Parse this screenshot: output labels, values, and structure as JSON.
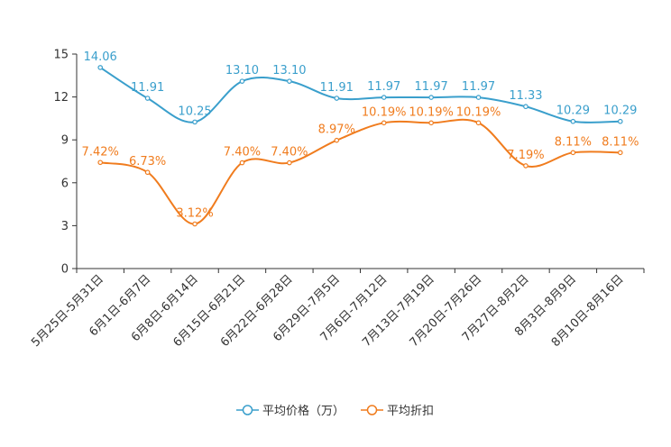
{
  "chart_data": {
    "type": "line",
    "categories": [
      "5月25日-5月31日",
      "6月1日-6月7日",
      "6月8日-6月14日",
      "6月15日-6月21日",
      "6月22日-6月28日",
      "6月29日-7月5日",
      "7月6日-7月12日",
      "7月13日-7月19日",
      "7月20日-7月26日",
      "7月27日-8月2日",
      "8月3日-8月9日",
      "8月10日-8月16日"
    ],
    "series": [
      {
        "name": "平均价格（万）",
        "values": [
          14.06,
          11.91,
          10.25,
          13.1,
          13.1,
          11.91,
          11.97,
          11.97,
          11.97,
          11.33,
          10.29,
          10.29
        ],
        "labels": [
          "14.06",
          "11.91",
          "10.25",
          "13.10",
          "13.10",
          "11.91",
          "11.97",
          "11.97",
          "11.97",
          "11.33",
          "10.29",
          "10.29"
        ],
        "color": "#3a9fcc"
      },
      {
        "name": "平均折扣",
        "values": [
          7.42,
          6.73,
          3.12,
          7.4,
          7.4,
          8.97,
          10.19,
          10.19,
          10.19,
          7.19,
          8.11,
          8.11
        ],
        "labels": [
          "7.42%",
          "6.73%",
          "3.12%",
          "7.40%",
          "7.40%",
          "8.97%",
          "10.19%",
          "10.19%",
          "10.19%",
          "7.19%",
          "8.11%",
          "8.11%"
        ],
        "color": "#f07c1e"
      }
    ],
    "ylim": [
      0,
      15
    ],
    "yticks": [
      0,
      3,
      6,
      9,
      12,
      15
    ],
    "grid": false,
    "legend": "bottom-center",
    "title": "",
    "xlabel": "",
    "ylabel": ""
  }
}
